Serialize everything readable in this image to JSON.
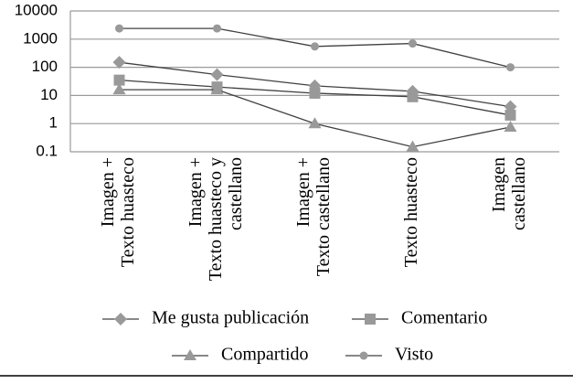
{
  "chart_data": {
    "type": "line",
    "categories": [
      [
        "Imagen +",
        "Texto huasteco"
      ],
      [
        "Imagen +",
        "Texto huasteco y",
        "castellano"
      ],
      [
        "Imagen +",
        "Texto castellano"
      ],
      [
        "Texto huasteco"
      ],
      [
        "Imagen",
        "castellano"
      ]
    ],
    "series": [
      {
        "name": "Me gusta publicación",
        "color": "#999999",
        "marker": "diamond",
        "values": [
          150,
          55,
          22,
          14,
          4
        ]
      },
      {
        "name": "Comentario",
        "color": "#999999",
        "marker": "square",
        "values": [
          35,
          20,
          12,
          9,
          2
        ]
      },
      {
        "name": "Compartido",
        "color": "#999999",
        "marker": "triangle",
        "values": [
          16,
          16,
          1,
          0.15,
          0.75
        ]
      },
      {
        "name": "Visto",
        "color": "#999999",
        "marker": "circle",
        "values": [
          2400,
          2400,
          550,
          700,
          100
        ]
      }
    ],
    "line_color": "#404040",
    "log_scale": true,
    "ylim": [
      0.1,
      10000
    ],
    "yticks": [
      0.1,
      1,
      10,
      100,
      1000,
      10000
    ],
    "grid": true
  }
}
